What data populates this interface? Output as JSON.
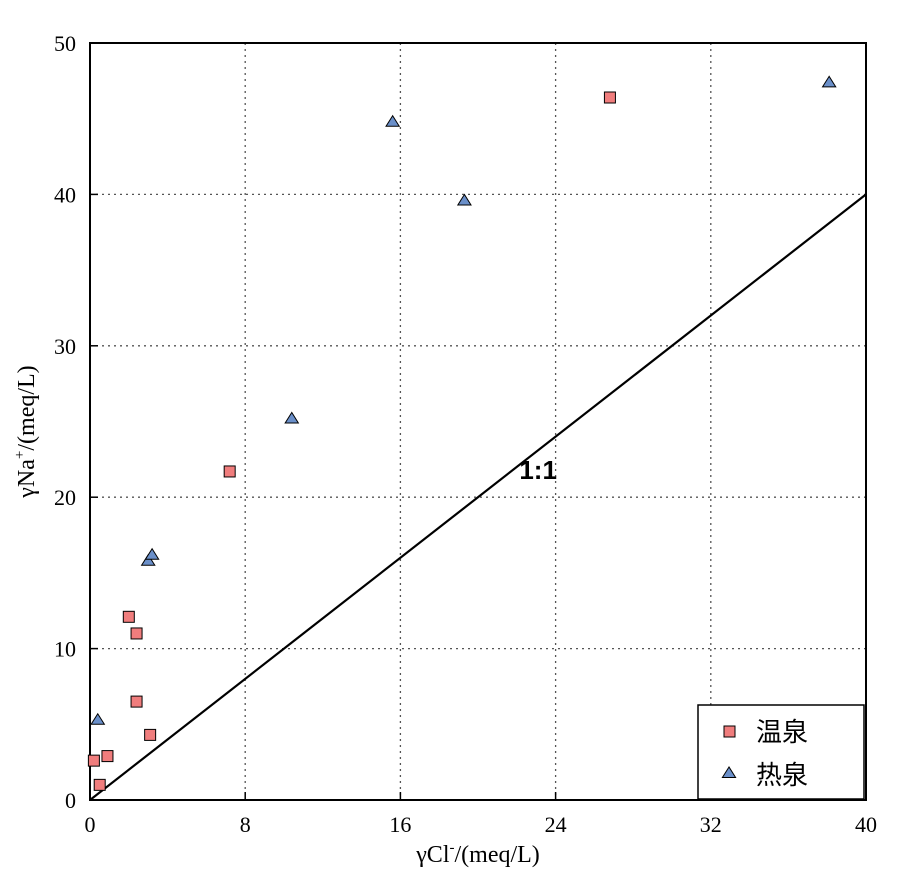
{
  "chart_data": {
    "type": "scatter",
    "xlabel": {
      "prefix": "γCl",
      "sup": "-",
      "suffix": "/(meq/L)"
    },
    "ylabel": {
      "prefix": "γNa",
      "sup": "+",
      "suffix": "/(meq/L)"
    },
    "xlim": [
      0,
      40
    ],
    "ylim": [
      0,
      50
    ],
    "x_ticks": [
      0,
      8,
      16,
      24,
      32,
      40
    ],
    "y_ticks": [
      0,
      10,
      20,
      30,
      40,
      50
    ],
    "grid": true,
    "legend_position": "bottom-right",
    "reference_line": {
      "label": "1:1",
      "from": [
        0,
        0
      ],
      "to": [
        40,
        40
      ]
    },
    "series": [
      {
        "name": "温泉",
        "marker": "square",
        "color": "#f07d7d",
        "points": [
          [
            0.2,
            2.6
          ],
          [
            0.5,
            1.0
          ],
          [
            0.9,
            2.9
          ],
          [
            2.0,
            12.1
          ],
          [
            2.4,
            11.0
          ],
          [
            2.4,
            6.5
          ],
          [
            3.1,
            4.3
          ],
          [
            7.2,
            21.7
          ],
          [
            26.8,
            46.4
          ]
        ]
      },
      {
        "name": "热泉",
        "marker": "triangle",
        "color": "#6a8fc9",
        "points": [
          [
            0.4,
            5.3
          ],
          [
            3.0,
            15.8
          ],
          [
            3.2,
            16.2
          ],
          [
            10.4,
            25.2
          ],
          [
            15.6,
            44.8
          ],
          [
            19.3,
            39.6
          ],
          [
            38.1,
            47.4
          ]
        ]
      }
    ]
  }
}
